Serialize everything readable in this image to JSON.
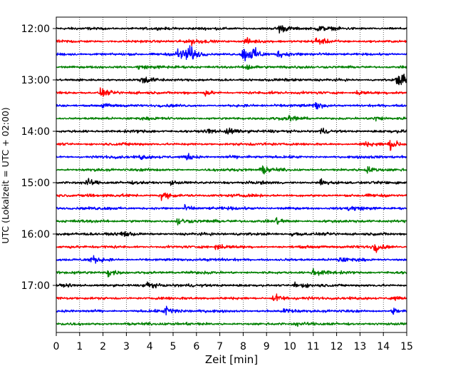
{
  "chart_data": {
    "type": "line",
    "title": "",
    "xlabel": "Zeit  [min]",
    "ylabel": "UTC (Lokalzeit = UTC + 02:00)",
    "xlim": [
      0,
      15
    ],
    "x_ticks": [
      "0",
      "1",
      "2",
      "3",
      "4",
      "5",
      "6",
      "7",
      "8",
      "9",
      "10",
      "11",
      "12",
      "13",
      "14",
      "15"
    ],
    "y_tick_labels": [
      "12:00",
      "13:00",
      "14:00",
      "15:00",
      "16:00",
      "17:00"
    ],
    "grid": "vertical dotted",
    "colors": [
      "#000000",
      "#ff0000",
      "#0000ff",
      "#008000"
    ],
    "series": [
      {
        "start": "12:00",
        "color": "#000000",
        "events": [
          [
            9.5,
            1.3
          ],
          [
            11.2,
            0.8
          ]
        ]
      },
      {
        "start": "12:15",
        "color": "#ff0000",
        "events": [
          [
            8.1,
            0.9
          ],
          [
            11.1,
            0.9
          ],
          [
            5.8,
            0.7
          ]
        ]
      },
      {
        "start": "12:30",
        "color": "#0000ff",
        "events": [
          [
            5.2,
            1.7
          ],
          [
            5.6,
            2.6
          ],
          [
            8.0,
            2.2
          ],
          [
            8.4,
            1.5
          ],
          [
            9.5,
            1.0
          ]
        ]
      },
      {
        "start": "12:45",
        "color": "#008000",
        "events": [
          [
            8.1,
            1.2
          ],
          [
            3.5,
            0.5
          ]
        ]
      },
      {
        "start": "13:00",
        "color": "#000000",
        "events": [
          [
            3.7,
            1.0
          ],
          [
            14.6,
            1.6
          ],
          [
            14.9,
            1.2
          ]
        ]
      },
      {
        "start": "13:15",
        "color": "#ff0000",
        "events": [
          [
            1.9,
            1.3
          ],
          [
            6.4,
            0.7
          ],
          [
            12.9,
            0.7
          ]
        ]
      },
      {
        "start": "13:30",
        "color": "#0000ff",
        "events": [
          [
            11.1,
            1.0
          ],
          [
            2.0,
            0.5
          ]
        ]
      },
      {
        "start": "13:45",
        "color": "#008000",
        "events": [
          [
            10.0,
            0.7
          ],
          [
            13.6,
            0.8
          ]
        ]
      },
      {
        "start": "14:00",
        "color": "#000000",
        "events": [
          [
            7.3,
            1.2
          ],
          [
            6.5,
            0.8
          ],
          [
            11.3,
            0.8
          ]
        ]
      },
      {
        "start": "14:15",
        "color": "#ff0000",
        "events": [
          [
            14.3,
            1.3
          ],
          [
            13.1,
            0.7
          ]
        ]
      },
      {
        "start": "14:30",
        "color": "#0000ff",
        "events": [
          [
            5.6,
            0.9
          ],
          [
            3.6,
            0.6
          ]
        ]
      },
      {
        "start": "14:45",
        "color": "#008000",
        "events": [
          [
            8.8,
            1.0
          ],
          [
            13.3,
            0.8
          ]
        ]
      },
      {
        "start": "15:00",
        "color": "#000000",
        "events": [
          [
            1.3,
            1.0
          ],
          [
            11.3,
            1.0
          ],
          [
            4.9,
            0.6
          ]
        ]
      },
      {
        "start": "15:15",
        "color": "#ff0000",
        "events": [
          [
            4.5,
            1.3
          ],
          [
            1.2,
            0.5
          ]
        ]
      },
      {
        "start": "15:30",
        "color": "#0000ff",
        "events": [
          [
            5.5,
            0.8
          ],
          [
            12.5,
            0.7
          ]
        ]
      },
      {
        "start": "15:45",
        "color": "#008000",
        "events": [
          [
            5.2,
            1.3
          ],
          [
            9.4,
            1.0
          ]
        ]
      },
      {
        "start": "16:00",
        "color": "#000000",
        "events": [
          [
            2.8,
            1.1
          ],
          [
            10.1,
            0.8
          ]
        ]
      },
      {
        "start": "16:15",
        "color": "#ff0000",
        "events": [
          [
            13.6,
            1.3
          ],
          [
            6.8,
            0.7
          ]
        ]
      },
      {
        "start": "16:30",
        "color": "#0000ff",
        "events": [
          [
            1.5,
            1.0
          ],
          [
            12.1,
            0.6
          ]
        ]
      },
      {
        "start": "16:45",
        "color": "#008000",
        "events": [
          [
            2.2,
            1.3
          ],
          [
            11.0,
            1.0
          ]
        ]
      },
      {
        "start": "17:00",
        "color": "#000000",
        "events": [
          [
            3.8,
            1.5
          ],
          [
            10.2,
            0.9
          ]
        ]
      },
      {
        "start": "17:15",
        "color": "#ff0000",
        "events": [
          [
            9.3,
            1.3
          ],
          [
            14.3,
            0.8
          ]
        ]
      },
      {
        "start": "17:30",
        "color": "#0000ff",
        "events": [
          [
            4.7,
            1.6
          ],
          [
            9.8,
            0.9
          ],
          [
            14.4,
            0.8
          ]
        ]
      },
      {
        "start": "17:45",
        "color": "#008000",
        "events": [
          [
            10.2,
            0.5
          ]
        ]
      }
    ]
  }
}
